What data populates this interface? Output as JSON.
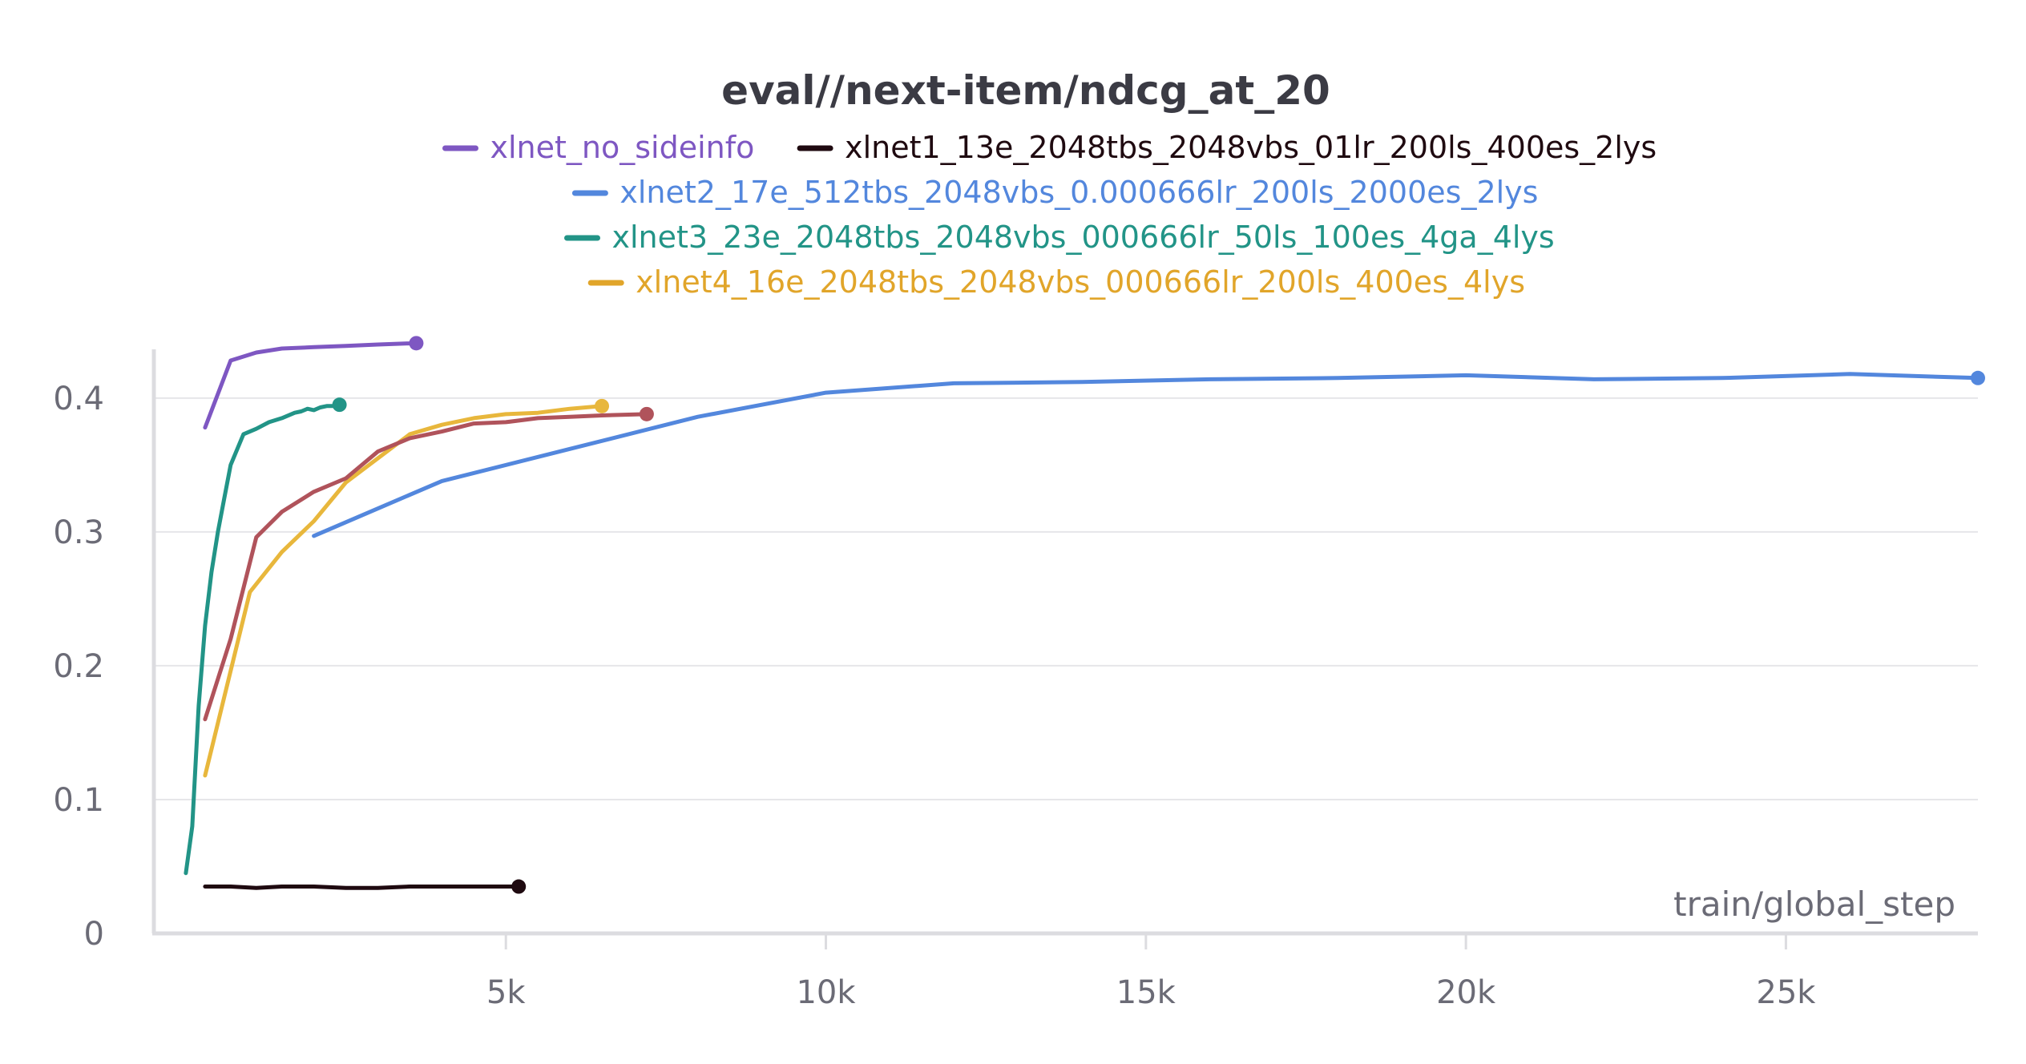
{
  "chart_data": {
    "type": "line",
    "title": "eval//next-item/ndcg_at_20",
    "xlabel": "train/global_step",
    "ylabel": "",
    "xlim": [
      -500,
      28000
    ],
    "ylim": [
      0,
      0.44
    ],
    "grid": true,
    "legend_position": "top-center",
    "x_ticks": [
      {
        "value": 5000,
        "label": "5k"
      },
      {
        "value": 10000,
        "label": "10k"
      },
      {
        "value": 15000,
        "label": "15k"
      },
      {
        "value": 20000,
        "label": "20k"
      },
      {
        "value": 25000,
        "label": "25k"
      }
    ],
    "y_ticks": [
      {
        "value": 0,
        "label": "0"
      },
      {
        "value": 0.1,
        "label": "0.1"
      },
      {
        "value": 0.2,
        "label": "0.2"
      },
      {
        "value": 0.3,
        "label": "0.3"
      },
      {
        "value": 0.4,
        "label": "0.4"
      }
    ],
    "series": [
      {
        "name": "xlnet_no_sideinfo",
        "color": "#7e57c2",
        "x": [
          300,
          700,
          1100,
          1500,
          2000,
          2500,
          3000,
          3600
        ],
        "y": [
          0.378,
          0.428,
          0.434,
          0.437,
          0.438,
          0.439,
          0.44,
          0.441
        ]
      },
      {
        "name": "xlnet1_13e_2048tbs_2048vbs_01lr_200ls_400es_2lys",
        "color": "#1f0a10",
        "x": [
          300,
          700,
          1100,
          1500,
          2000,
          2500,
          3000,
          3500,
          4000,
          4500,
          5200
        ],
        "y": [
          0.035,
          0.035,
          0.034,
          0.035,
          0.035,
          0.034,
          0.034,
          0.035,
          0.035,
          0.035,
          0.035
        ]
      },
      {
        "name": "xlnet2_17e_512tbs_2048vbs_0.000666lr_200ls_2000es_2lys",
        "color": "#5387dd",
        "x": [
          2000,
          4000,
          6000,
          8000,
          10000,
          12000,
          14000,
          16000,
          18000,
          20000,
          22000,
          24000,
          26000,
          28000
        ],
        "y": [
          0.297,
          0.338,
          0.362,
          0.386,
          0.404,
          0.411,
          0.412,
          0.414,
          0.415,
          0.417,
          0.414,
          0.415,
          0.418,
          0.415
        ]
      },
      {
        "name": "xlnet3_23e_2048tbs_2048vbs_000666lr_50ls_100es_4ga_4lys",
        "color": "#229487",
        "x": [
          0,
          100,
          200,
          300,
          400,
          500,
          600,
          700,
          900,
          1100,
          1300,
          1500,
          1700,
          1800,
          1900,
          2000,
          2100,
          2200,
          2300,
          2400
        ],
        "y": [
          0.045,
          0.08,
          0.17,
          0.23,
          0.27,
          0.3,
          0.325,
          0.35,
          0.373,
          0.377,
          0.382,
          0.385,
          0.389,
          0.39,
          0.392,
          0.391,
          0.393,
          0.394,
          0.394,
          0.395
        ]
      },
      {
        "name": "xlnet4_16e_2048tbs_2048vbs_000666lr_200ls_400es_4lys",
        "color": "#e8b73c",
        "x": [
          300,
          1000,
          1500,
          2000,
          2500,
          3000,
          3500,
          4000,
          4500,
          5000,
          5500,
          6000,
          6500
        ],
        "y": [
          0.118,
          0.255,
          0.285,
          0.308,
          0.337,
          0.355,
          0.373,
          0.38,
          0.385,
          0.388,
          0.389,
          0.392,
          0.394
        ]
      },
      {
        "name": "",
        "color": "#b0535b",
        "x": [
          300,
          700,
          1100,
          1500,
          2000,
          2500,
          3000,
          3500,
          4000,
          4500,
          5000,
          5500,
          6000,
          6500,
          7200
        ],
        "y": [
          0.16,
          0.22,
          0.296,
          0.315,
          0.33,
          0.34,
          0.36,
          0.37,
          0.375,
          0.381,
          0.382,
          0.385,
          0.386,
          0.387,
          0.388
        ]
      }
    ]
  },
  "legend": {
    "rows": [
      [
        {
          "label": "xlnet_no_sideinfo",
          "color": "#7e57c2"
        },
        {
          "label": "xlnet1_13e_2048tbs_2048vbs_01lr_200ls_400es_2lys",
          "color": "#1f0a10"
        }
      ],
      [
        {
          "label": "xlnet2_17e_512tbs_2048vbs_0.000666lr_200ls_2000es_2lys",
          "color": "#5387dd"
        }
      ],
      [
        {
          "label": "xlnet3_23e_2048tbs_2048vbs_000666lr_50ls_100es_4ga_4lys",
          "color": "#229487"
        }
      ],
      [
        {
          "label": "xlnet4_16e_2048tbs_2048vbs_000666lr_200ls_400es_4lys",
          "color": "#e1a52a"
        }
      ]
    ]
  }
}
